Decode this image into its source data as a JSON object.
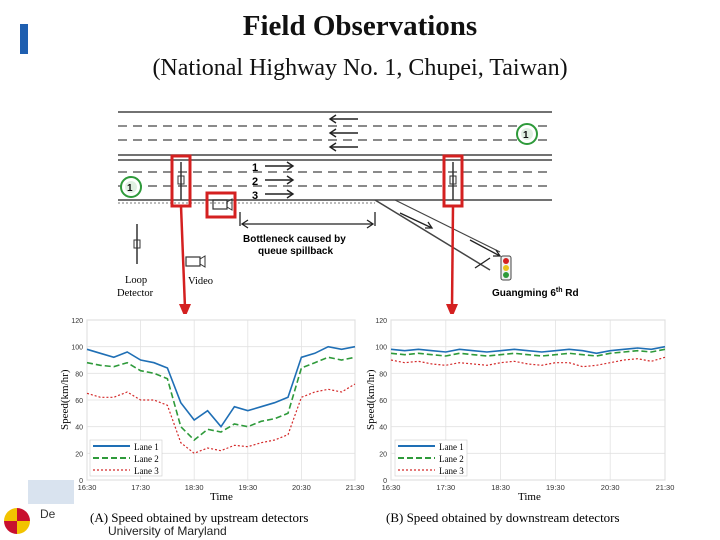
{
  "slide": {
    "title": "Field Observations",
    "subtitle": "(National Highway No. 1, Chupei, Taiwan)"
  },
  "diagram": {
    "lane_labels": [
      "1",
      "2",
      "3"
    ],
    "bottleneck_label_line1": "Bottleneck caused by",
    "bottleneck_label_line2": "queue spillback",
    "loop_detector_line1": "Loop",
    "loop_detector_line2": "Detector",
    "video_label": "Video",
    "road_label": "Guangming 6",
    "road_label_sup": "th",
    "road_label_suffix": " Rd",
    "shield_number": "1"
  },
  "charts": {
    "upstream": {
      "ylabel": "Speed(km/hr)",
      "xlabel": "Time",
      "yticks": [
        "0",
        "20",
        "40",
        "60",
        "80",
        "100",
        "120"
      ],
      "xticks": [
        "16:30",
        "17:30",
        "18:30",
        "19:30",
        "20:30",
        "21:30"
      ],
      "legend": [
        "Lane 1",
        "Lane 2",
        "Lane 3"
      ],
      "caption": "(A) Speed obtained by upstream detectors"
    },
    "downstream": {
      "ylabel": "Speed(km/hr)",
      "xlabel": "Time",
      "yticks": [
        "0",
        "20",
        "40",
        "60",
        "80",
        "100",
        "120"
      ],
      "xticks": [
        "16:30",
        "17:30",
        "18:30",
        "19:30",
        "20:30",
        "21:30"
      ],
      "legend": [
        "Lane 1",
        "Lane 2",
        "Lane 3"
      ],
      "caption": "(B) Speed obtained by downstream detectors"
    }
  },
  "chart_data": [
    {
      "type": "line",
      "title": "(A) Speed obtained by upstream detectors",
      "xlabel": "Time",
      "ylabel": "Speed(km/hr)",
      "ylim": [
        0,
        120
      ],
      "x": [
        "16:30",
        "16:45",
        "17:00",
        "17:15",
        "17:30",
        "17:45",
        "18:00",
        "18:15",
        "18:30",
        "18:45",
        "19:00",
        "19:15",
        "19:30",
        "19:45",
        "20:00",
        "20:15",
        "20:30",
        "20:45",
        "21:00",
        "21:15",
        "21:30"
      ],
      "series": [
        {
          "name": "Lane 1",
          "color": "#1f6fb5",
          "values": [
            98,
            95,
            92,
            96,
            90,
            88,
            84,
            58,
            45,
            52,
            40,
            55,
            52,
            55,
            58,
            62,
            92,
            95,
            100,
            98,
            100
          ]
        },
        {
          "name": "Lane 2",
          "color": "#2e9a3a",
          "values": [
            88,
            86,
            85,
            88,
            82,
            80,
            76,
            40,
            30,
            38,
            36,
            42,
            40,
            44,
            46,
            50,
            84,
            88,
            92,
            90,
            92
          ]
        },
        {
          "name": "Lane 3",
          "color": "#d42a2a",
          "values": [
            65,
            62,
            62,
            66,
            60,
            60,
            56,
            28,
            20,
            24,
            22,
            26,
            25,
            28,
            30,
            34,
            62,
            66,
            68,
            66,
            72
          ]
        }
      ]
    },
    {
      "type": "line",
      "title": "(B) Speed obtained by downstream detectors",
      "xlabel": "Time",
      "ylabel": "Speed(km/hr)",
      "ylim": [
        0,
        120
      ],
      "x": [
        "16:30",
        "16:45",
        "17:00",
        "17:15",
        "17:30",
        "17:45",
        "18:00",
        "18:15",
        "18:30",
        "18:45",
        "19:00",
        "19:15",
        "19:30",
        "19:45",
        "20:00",
        "20:15",
        "20:30",
        "20:45",
        "21:00",
        "21:15",
        "21:30"
      ],
      "series": [
        {
          "name": "Lane 1",
          "color": "#1f6fb5",
          "values": [
            98,
            97,
            98,
            97,
            96,
            98,
            97,
            96,
            97,
            98,
            97,
            96,
            97,
            98,
            97,
            95,
            97,
            98,
            99,
            98,
            100
          ]
        },
        {
          "name": "Lane 2",
          "color": "#2e9a3a",
          "values": [
            95,
            94,
            95,
            94,
            93,
            95,
            94,
            93,
            94,
            95,
            94,
            93,
            94,
            95,
            94,
            93,
            95,
            96,
            97,
            96,
            98
          ]
        },
        {
          "name": "Lane 3",
          "color": "#d42a2a",
          "values": [
            90,
            88,
            89,
            87,
            86,
            88,
            87,
            86,
            88,
            89,
            87,
            86,
            88,
            88,
            85,
            86,
            88,
            90,
            91,
            89,
            92
          ]
        }
      ]
    }
  ],
  "footer": {
    "dept_abbrev": "De",
    "university": "University of Maryland"
  }
}
